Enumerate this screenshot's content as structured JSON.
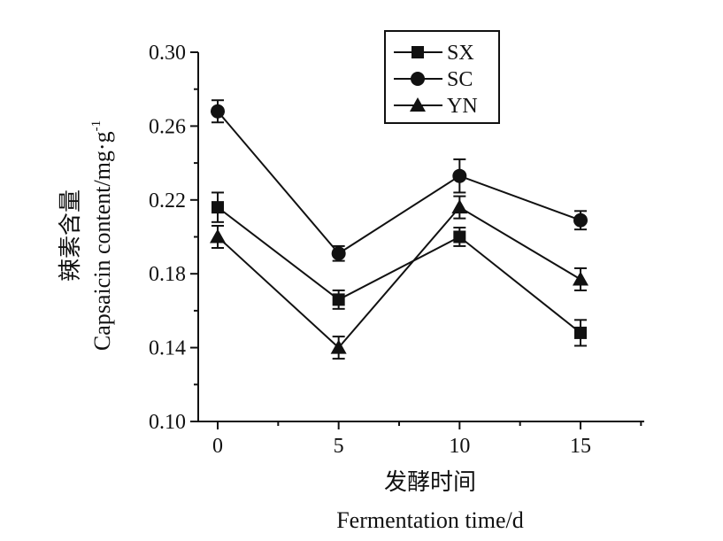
{
  "chart_data": {
    "type": "line",
    "x": [
      0,
      5,
      10,
      15
    ],
    "xticks": [
      "0",
      "5",
      "10",
      "15"
    ],
    "xlim": [
      -0.8,
      17.8
    ],
    "ylim": [
      0.1,
      0.3
    ],
    "yticks": [
      "0.10",
      "0.14",
      "0.18",
      "0.22",
      "0.26",
      "0.30"
    ],
    "xlabel_cn": "发酵时间",
    "xlabel_en": "Fermentation time/d",
    "ylabel_cn": "辣素含量",
    "ylabel_en": "Capsaicin content/mg·g",
    "ylabel_sup": "-1",
    "legend_position": "top-center",
    "grid": false,
    "series": [
      {
        "name": "SX",
        "marker": "square",
        "values": [
          0.216,
          0.166,
          0.2,
          0.148
        ],
        "errors": [
          0.008,
          0.005,
          0.005,
          0.007
        ]
      },
      {
        "name": "SC",
        "marker": "circle",
        "values": [
          0.268,
          0.191,
          0.233,
          0.209
        ],
        "errors": [
          0.006,
          0.004,
          0.009,
          0.005
        ]
      },
      {
        "name": "YN",
        "marker": "triangle",
        "values": [
          0.2,
          0.14,
          0.216,
          0.177
        ],
        "errors": [
          0.006,
          0.006,
          0.006,
          0.006
        ]
      }
    ]
  }
}
